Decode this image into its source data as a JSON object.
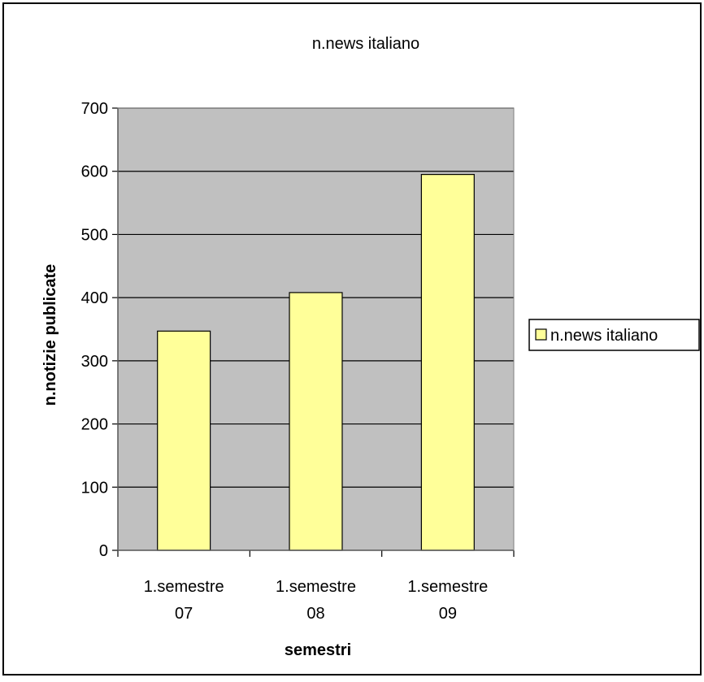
{
  "chart_data": {
    "type": "bar",
    "title": "n.news italiano",
    "xlabel": "semestri",
    "ylabel": "n.notizie publicate",
    "categories": [
      [
        "1.semestre",
        "07"
      ],
      [
        "1.semestre",
        "08"
      ],
      [
        "1.semestre",
        "09"
      ]
    ],
    "series": [
      {
        "name": "n.news italiano",
        "values": [
          347,
          408,
          595
        ],
        "color": "#ffff99"
      }
    ],
    "ylim": [
      0,
      700
    ],
    "yticks": [
      0,
      100,
      200,
      300,
      400,
      500,
      600,
      700
    ],
    "grid": true,
    "legend": "right",
    "plot_background": "#c0c0c0"
  }
}
